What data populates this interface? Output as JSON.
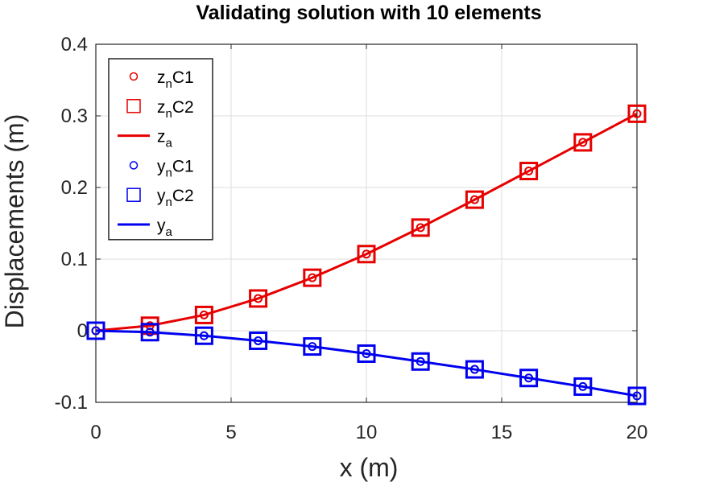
{
  "chart_data": {
    "type": "line",
    "title": "Validating solution with 10 elements",
    "xlabel": "x (m)",
    "ylabel": "Displacements (m)",
    "xlim": [
      0,
      20
    ],
    "ylim": [
      -0.1,
      0.4
    ],
    "xticks": [
      0,
      5,
      10,
      15,
      20
    ],
    "xtick_labels": [
      "0",
      "5",
      "10",
      "15",
      "20"
    ],
    "yticks": [
      -0.1,
      0,
      0.1,
      0.2,
      0.3,
      0.4
    ],
    "ytick_labels": [
      "-0.1",
      "0",
      "0.1",
      "0.2",
      "0.3",
      "0.4"
    ],
    "grid": true,
    "legend_position": "top-left",
    "x": [
      0,
      2,
      4,
      6,
      8,
      10,
      12,
      14,
      16,
      18,
      20
    ],
    "series": [
      {
        "name": "z_nC1",
        "legend_main": "z",
        "legend_sub": "n",
        "legend_tail": "C1",
        "marker": "circle",
        "line": false,
        "color": "#e60000",
        "values": [
          0,
          0.007,
          0.022,
          0.045,
          0.074,
          0.107,
          0.144,
          0.183,
          0.223,
          0.263,
          0.303
        ]
      },
      {
        "name": "z_nC2",
        "legend_main": "z",
        "legend_sub": "n",
        "legend_tail": "C2",
        "marker": "square",
        "line": false,
        "color": "#e60000",
        "values": [
          0,
          0.007,
          0.022,
          0.045,
          0.074,
          0.107,
          0.144,
          0.183,
          0.223,
          0.263,
          0.303
        ]
      },
      {
        "name": "z_a",
        "legend_main": "z",
        "legend_sub": "a",
        "legend_tail": "",
        "marker": "none",
        "line": true,
        "color": "#e60000",
        "values": [
          0,
          0.007,
          0.022,
          0.045,
          0.074,
          0.107,
          0.144,
          0.183,
          0.223,
          0.263,
          0.303
        ]
      },
      {
        "name": "y_nC1",
        "legend_main": "y",
        "legend_sub": "n",
        "legend_tail": "C1",
        "marker": "circle",
        "line": false,
        "color": "#0000ee",
        "values": [
          0,
          -0.002,
          -0.007,
          -0.014,
          -0.022,
          -0.032,
          -0.043,
          -0.054,
          -0.066,
          -0.078,
          -0.091
        ]
      },
      {
        "name": "y_nC2",
        "legend_main": "y",
        "legend_sub": "n",
        "legend_tail": "C2",
        "marker": "square",
        "line": false,
        "color": "#0000ee",
        "values": [
          0,
          -0.002,
          -0.007,
          -0.014,
          -0.022,
          -0.032,
          -0.043,
          -0.054,
          -0.066,
          -0.078,
          -0.091
        ]
      },
      {
        "name": "y_a",
        "legend_main": "y",
        "legend_sub": "a",
        "legend_tail": "",
        "marker": "none",
        "line": true,
        "color": "#0000ee",
        "values": [
          0,
          -0.002,
          -0.007,
          -0.014,
          -0.022,
          -0.032,
          -0.043,
          -0.054,
          -0.066,
          -0.078,
          -0.091
        ]
      }
    ]
  }
}
